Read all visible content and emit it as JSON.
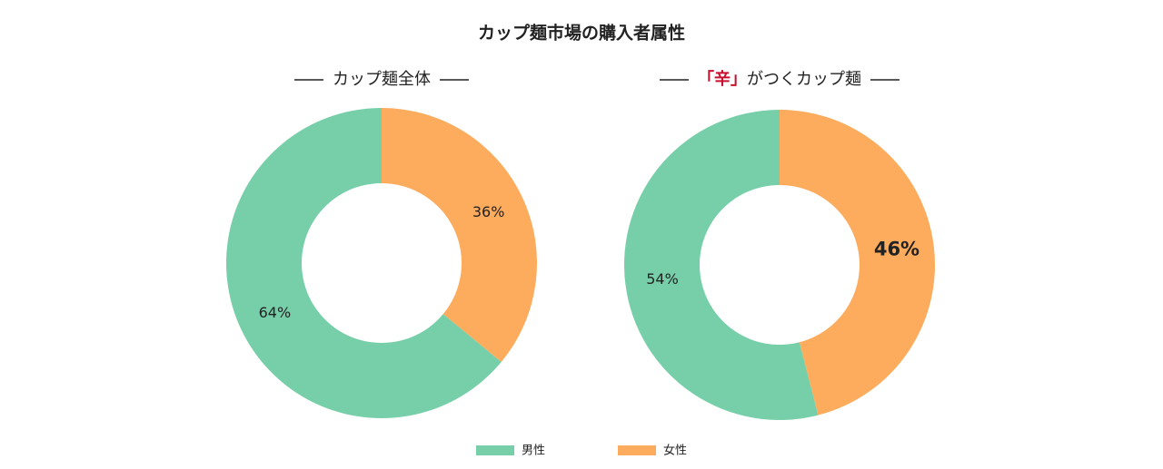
{
  "title": "カップ麺市場の購入者属性",
  "chart_data": [
    {
      "type": "pie",
      "donut": true,
      "title": "カップ麺全体",
      "categories": [
        "男性",
        "女性"
      ],
      "values": [
        64,
        36
      ],
      "value_labels": [
        "64%",
        "36%"
      ],
      "colors": [
        "#77cfaa",
        "#fdab5c"
      ],
      "value_label_bold": [
        false,
        false
      ]
    },
    {
      "type": "pie",
      "donut": true,
      "title": [
        {
          "text": "「辛」",
          "color": "#c8102e"
        },
        {
          "text": "がつくカップ麺",
          "color": "#222222"
        }
      ],
      "categories": [
        "男性",
        "女性"
      ],
      "values": [
        54,
        46
      ],
      "value_labels": [
        "54%",
        "46%"
      ],
      "colors": [
        "#77cfaa",
        "#fdab5c"
      ],
      "value_label_bold": [
        false,
        true
      ]
    }
  ]
}
